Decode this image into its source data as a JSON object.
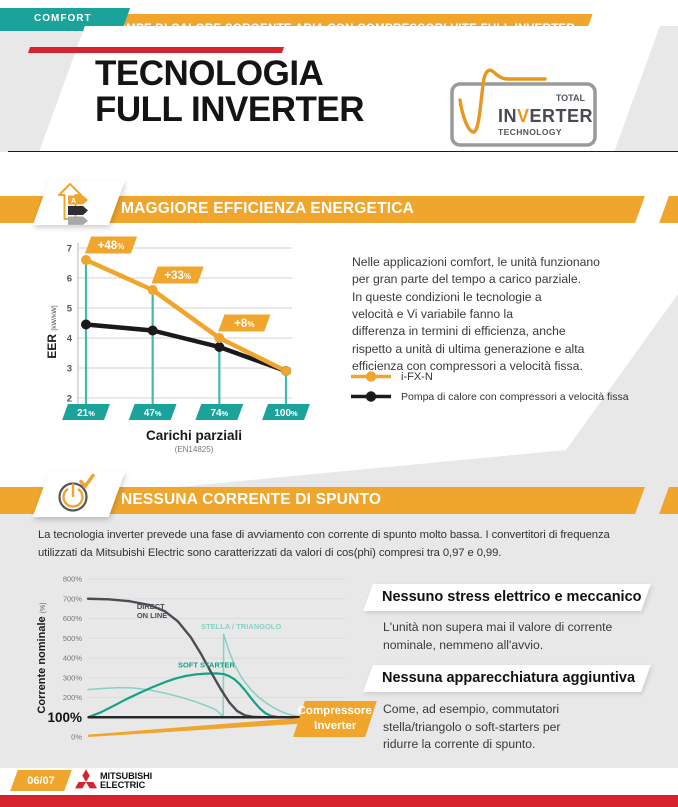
{
  "colors": {
    "orange": "#F0A52C",
    "teal": "#1BA39B",
    "red": "#D7232E",
    "dark": "#1A1A1A",
    "page_gray": "#E8E8E8",
    "stem_teal": "#45B8AE",
    "direct_on_line": "#4C4C55",
    "soft_starter": "#12A287",
    "stella_triangolo": "#8CD1C5"
  },
  "header": {
    "comfort_tag": "COMFORT",
    "topbar": "POMPE DI CALORE SORGENTE ARIA CON COMPRESSORI VITE FULL INVERTER",
    "title_line1": "TECNOLOGIA",
    "title_line2": "FULL INVERTER",
    "logo": {
      "total": "TOTAL",
      "in": "IN",
      "v": "V",
      "erter": "ERTER",
      "technology": "TECHNOLOGY"
    }
  },
  "section1": {
    "banner": "MAGGIORE EFFICIENZA ENERGETICA",
    "paragraph": "Nelle applicazioni comfort, le unità funzionano\nper gran parte del tempo a carico parziale.\nIn queste condizioni le tecnologie a\nvelocità e Vi variabile fanno la\ndifferenza in termini di efficienza, anche\nrispetto a unità di ultima generazione e alta\nefficienza con compressori a velocità fissa."
  },
  "section2": {
    "banner": "NESSUNA CORRENTE DI SPUNTO",
    "paragraph": "La tecnologia inverter prevede una fase di avviamento con corrente di spunto molto bassa. I convertitori di frequenza\nutilizzati da Mitsubishi Electric sono caratterizzati da valori di cos(phi) compresi tra 0,97 e 0,99.",
    "inverter_badge": "Compressore\nInverter",
    "blocks": [
      {
        "heading": "Nessuno stress elettrico e meccanico",
        "body": "L'unità non supera mai il valore di corrente\nnominale, nemmeno all'avvio."
      },
      {
        "heading": "Nessuna apparecchiatura aggiuntiva",
        "body": "Come, ad esempio, commutatori\nstella/triangolo o soft-starters per\nridurre la corrente di spunto."
      }
    ]
  },
  "chart_data": [
    {
      "type": "line",
      "title": "",
      "xlabel": "Carichi parziali",
      "xlabel_note": "(EN14825)",
      "ylabel": "EER",
      "ylabel_units": "[kW/kW]",
      "categories": [
        "21%",
        "47%",
        "74%",
        "100%"
      ],
      "ylim": [
        2,
        7
      ],
      "yticks": [
        7,
        6,
        5,
        4,
        3,
        2
      ],
      "grid": true,
      "legend_position": "right",
      "category_marker_color": "#1BA39B",
      "stem_color": "#45B8AE",
      "series": [
        {
          "name": "i-FX-N",
          "color": "#F0A52C",
          "values": [
            6.6,
            5.6,
            4.0,
            2.9
          ]
        },
        {
          "name": "Pompa di calore con compressori a velocità fissa",
          "color": "#1A1A1A",
          "values": [
            4.45,
            4.25,
            3.7,
            2.9
          ]
        }
      ],
      "annotations": [
        {
          "label": "+48%",
          "index": 0
        },
        {
          "label": "+33%",
          "index": 1
        },
        {
          "label": "+8%",
          "index": 2
        }
      ]
    },
    {
      "type": "line",
      "ylabel": "Corrente nominale",
      "ylabel_units": "(%)",
      "ylim": [
        0,
        800
      ],
      "yticks": [
        800,
        700,
        600,
        500,
        400,
        300,
        200,
        100,
        0
      ],
      "ytick_emphasis": 100,
      "baseline": 100,
      "grid": true,
      "series": [
        {
          "name": "STELLA / TRIANGOLO",
          "color": "#8CD1C5",
          "width": 1.6,
          "points": [
            [
              0,
              240
            ],
            [
              6,
              246
            ],
            [
              12,
              250
            ],
            [
              18,
              248
            ],
            [
              24,
              238
            ],
            [
              30,
              222
            ],
            [
              36,
              202
            ],
            [
              41,
              182
            ],
            [
              45,
              163
            ],
            [
              48,
              148
            ],
            [
              50,
              135
            ],
            [
              52,
              112
            ],
            [
              52.6,
              103
            ],
            [
              52.8,
              520
            ],
            [
              55,
              430
            ],
            [
              57,
              365
            ],
            [
              60,
              296
            ],
            [
              63,
              246
            ],
            [
              66,
              206
            ],
            [
              69,
              176
            ],
            [
              72,
              150
            ],
            [
              75,
              130
            ],
            [
              78,
              115
            ],
            [
              81,
              106
            ],
            [
              85,
              101
            ],
            [
              90,
              100
            ],
            [
              100,
              100
            ]
          ]
        },
        {
          "name": "SOFT STARTER",
          "color": "#12A287",
          "width": 2.2,
          "points": [
            [
              0,
              100
            ],
            [
              5,
              125
            ],
            [
              10,
              158
            ],
            [
              15,
              192
            ],
            [
              20,
              223
            ],
            [
              25,
              252
            ],
            [
              30,
              278
            ],
            [
              34,
              296
            ],
            [
              38,
              309
            ],
            [
              42,
              317
            ],
            [
              46,
              321
            ],
            [
              50,
              322
            ],
            [
              53,
              318
            ],
            [
              55,
              308
            ],
            [
              57,
              292
            ],
            [
              59,
              268
            ],
            [
              61,
              238
            ],
            [
              63,
              205
            ],
            [
              65,
              172
            ],
            [
              67,
              143
            ],
            [
              69,
              121
            ],
            [
              71,
              108
            ],
            [
              74,
              101
            ],
            [
              78,
              100
            ],
            [
              100,
              100
            ]
          ]
        },
        {
          "name": "DIRECT ON LINE",
          "color": "#4C4C55",
          "width": 2.4,
          "points": [
            [
              0,
              700
            ],
            [
              8,
              697
            ],
            [
              16,
              688
            ],
            [
              24,
              668
            ],
            [
              30,
              636
            ],
            [
              35,
              585
            ],
            [
              40,
              505
            ],
            [
              44,
              420
            ],
            [
              48,
              325
            ],
            [
              52,
              235
            ],
            [
              55,
              175
            ],
            [
              58,
              132
            ],
            [
              61,
              110
            ],
            [
              64,
              102
            ],
            [
              68,
              100
            ],
            [
              100,
              100
            ]
          ]
        },
        {
          "name": "Compressore Inverter",
          "color": "#F0A52C",
          "wedge": true,
          "points": [
            [
              0,
              6
            ],
            [
              104,
              102
            ]
          ]
        }
      ],
      "curve_labels": [
        {
          "text": "DIRECT\nON LINE",
          "color": "#4C4C55",
          "u": 19,
          "v": 648
        },
        {
          "text": "STELLA / TRIANGOLO",
          "color": "#8CD1C5",
          "u": 44,
          "v": 548
        },
        {
          "text": "SOFT STARTER",
          "color": "#12A287",
          "u": 35,
          "v": 352
        }
      ]
    }
  ],
  "footer": {
    "page": "06/07",
    "brand_line1": "MITSUBISHI",
    "brand_line2": "ELECTRIC"
  }
}
